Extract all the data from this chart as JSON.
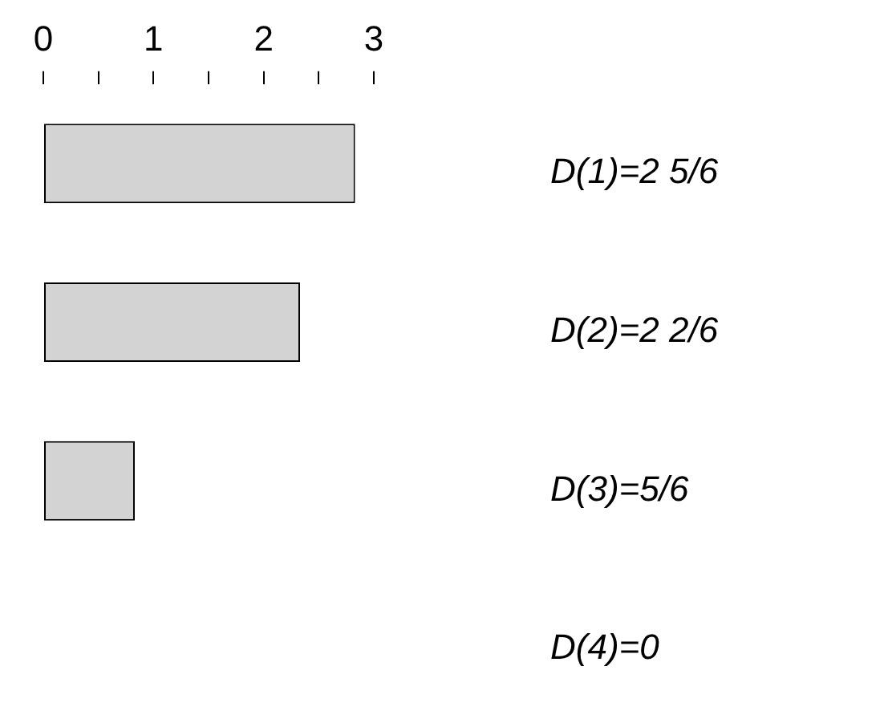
{
  "chart_data": {
    "type": "bar",
    "orientation": "horizontal",
    "categories": [
      "D(1)=2 5/6",
      "D(2)=2 2/6",
      "D(3)=5/6",
      "D(4)=0"
    ],
    "values": [
      2.83,
      2.33,
      0.83,
      0
    ],
    "color": "#d3d3d3",
    "xlim": [
      0,
      3
    ],
    "xticks": [
      0,
      {
        "value": 0.5,
        "label": null
      },
      1,
      {
        "value": 1.5,
        "label": null
      },
      2,
      {
        "value": 2.5,
        "label": null
      },
      3
    ]
  }
}
